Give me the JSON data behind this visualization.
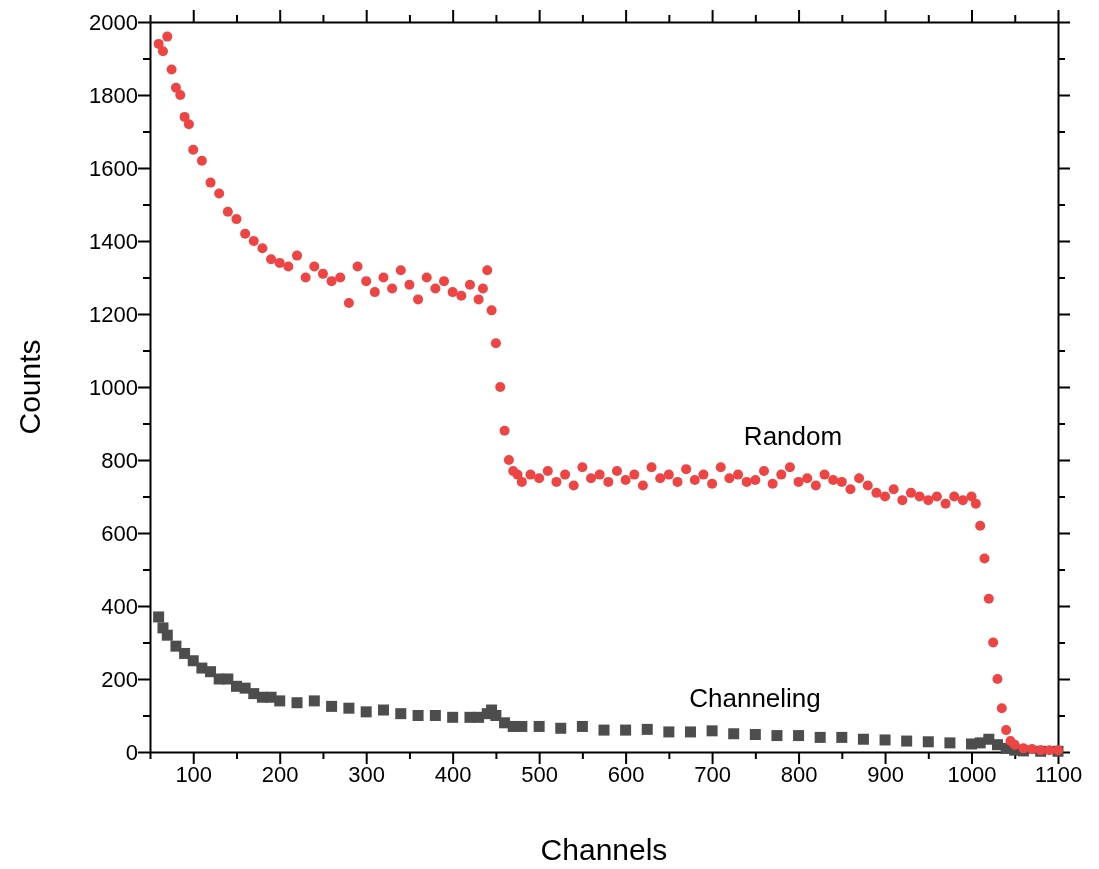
{
  "chart_data": {
    "type": "scatter",
    "xlabel": "Channels",
    "ylabel": "Counts",
    "xlim": [
      50,
      1100
    ],
    "ylim": [
      0,
      2000
    ],
    "xticks": [
      {
        "value": 50,
        "label": null
      },
      100,
      {
        "value": 150,
        "label": null
      },
      200,
      {
        "value": 250,
        "label": null
      },
      300,
      {
        "value": 350,
        "label": null
      },
      400,
      {
        "value": 450,
        "label": null
      },
      500,
      {
        "value": 550,
        "label": null
      },
      600,
      {
        "value": 650,
        "label": null
      },
      700,
      {
        "value": 750,
        "label": null
      },
      800,
      {
        "value": 850,
        "label": null
      },
      900,
      {
        "value": 950,
        "label": null
      },
      1000,
      {
        "value": 1050,
        "label": null
      },
      1100
    ],
    "yticks": [
      0,
      {
        "value": 100,
        "label": null
      },
      200,
      {
        "value": 300,
        "label": null
      },
      400,
      {
        "value": 500,
        "label": null
      },
      600,
      {
        "value": 700,
        "label": null
      },
      800,
      {
        "value": 900,
        "label": null
      },
      1000,
      {
        "value": 1100,
        "label": null
      },
      1200,
      {
        "value": 1300,
        "label": null
      },
      1400,
      {
        "value": 1500,
        "label": null
      },
      1600,
      {
        "value": 1700,
        "label": null
      },
      1800,
      {
        "value": 1900,
        "label": null
      },
      2000
    ],
    "series": [
      {
        "name": "Random",
        "color": "#ef4444",
        "marker": "circle",
        "x": [
          60,
          65,
          70,
          75,
          80,
          85,
          90,
          95,
          100,
          110,
          120,
          130,
          140,
          150,
          160,
          170,
          180,
          190,
          200,
          210,
          220,
          230,
          240,
          250,
          260,
          270,
          280,
          290,
          300,
          310,
          320,
          330,
          340,
          350,
          360,
          370,
          380,
          390,
          400,
          410,
          420,
          430,
          435,
          440,
          445,
          450,
          455,
          460,
          465,
          470,
          475,
          480,
          490,
          500,
          510,
          520,
          530,
          540,
          550,
          560,
          570,
          580,
          590,
          600,
          610,
          620,
          630,
          640,
          650,
          660,
          670,
          680,
          690,
          700,
          710,
          720,
          730,
          740,
          750,
          760,
          770,
          780,
          790,
          800,
          810,
          820,
          830,
          840,
          850,
          860,
          870,
          880,
          890,
          900,
          910,
          920,
          930,
          940,
          950,
          960,
          970,
          980,
          990,
          1000,
          1005,
          1010,
          1015,
          1020,
          1025,
          1030,
          1035,
          1040,
          1045,
          1050,
          1060,
          1070,
          1080,
          1090,
          1100
        ],
        "values": [
          1940,
          1920,
          1960,
          1870,
          1820,
          1800,
          1740,
          1720,
          1650,
          1620,
          1560,
          1530,
          1480,
          1460,
          1420,
          1400,
          1380,
          1350,
          1340,
          1330,
          1360,
          1300,
          1330,
          1310,
          1290,
          1300,
          1230,
          1330,
          1290,
          1260,
          1300,
          1270,
          1320,
          1280,
          1240,
          1300,
          1270,
          1290,
          1260,
          1250,
          1280,
          1240,
          1270,
          1320,
          1210,
          1120,
          1000,
          880,
          800,
          770,
          760,
          740,
          760,
          750,
          770,
          740,
          760,
          730,
          780,
          750,
          760,
          740,
          770,
          745,
          760,
          730,
          780,
          750,
          760,
          740,
          775,
          745,
          760,
          735,
          780,
          750,
          760,
          740,
          745,
          770,
          735,
          760,
          780,
          740,
          750,
          730,
          760,
          745,
          740,
          720,
          750,
          730,
          710,
          700,
          720,
          690,
          710,
          700,
          690,
          700,
          680,
          700,
          690,
          700,
          680,
          620,
          530,
          420,
          300,
          200,
          120,
          60,
          30,
          20,
          10,
          8,
          5,
          5,
          5
        ]
      },
      {
        "name": "Channeling",
        "color": "#4d4d4d",
        "marker": "square",
        "x": [
          60,
          65,
          70,
          80,
          90,
          100,
          110,
          120,
          130,
          140,
          150,
          160,
          170,
          180,
          190,
          200,
          220,
          240,
          260,
          280,
          300,
          320,
          340,
          360,
          380,
          400,
          420,
          430,
          440,
          445,
          450,
          460,
          470,
          480,
          500,
          525,
          550,
          575,
          600,
          625,
          650,
          675,
          700,
          725,
          750,
          775,
          800,
          825,
          850,
          875,
          900,
          925,
          950,
          975,
          1000,
          1010,
          1020,
          1030,
          1040,
          1050,
          1060,
          1080,
          1100
        ],
        "values": [
          370,
          340,
          320,
          290,
          270,
          250,
          230,
          220,
          200,
          200,
          180,
          175,
          160,
          150,
          150,
          140,
          135,
          140,
          125,
          120,
          110,
          115,
          105,
          100,
          100,
          95,
          95,
          95,
          105,
          115,
          100,
          80,
          70,
          70,
          70,
          65,
          70,
          60,
          60,
          62,
          55,
          55,
          58,
          50,
          48,
          45,
          45,
          40,
          40,
          35,
          33,
          30,
          28,
          25,
          22,
          25,
          35,
          20,
          10,
          5,
          3,
          2,
          2
        ]
      }
    ]
  }
}
